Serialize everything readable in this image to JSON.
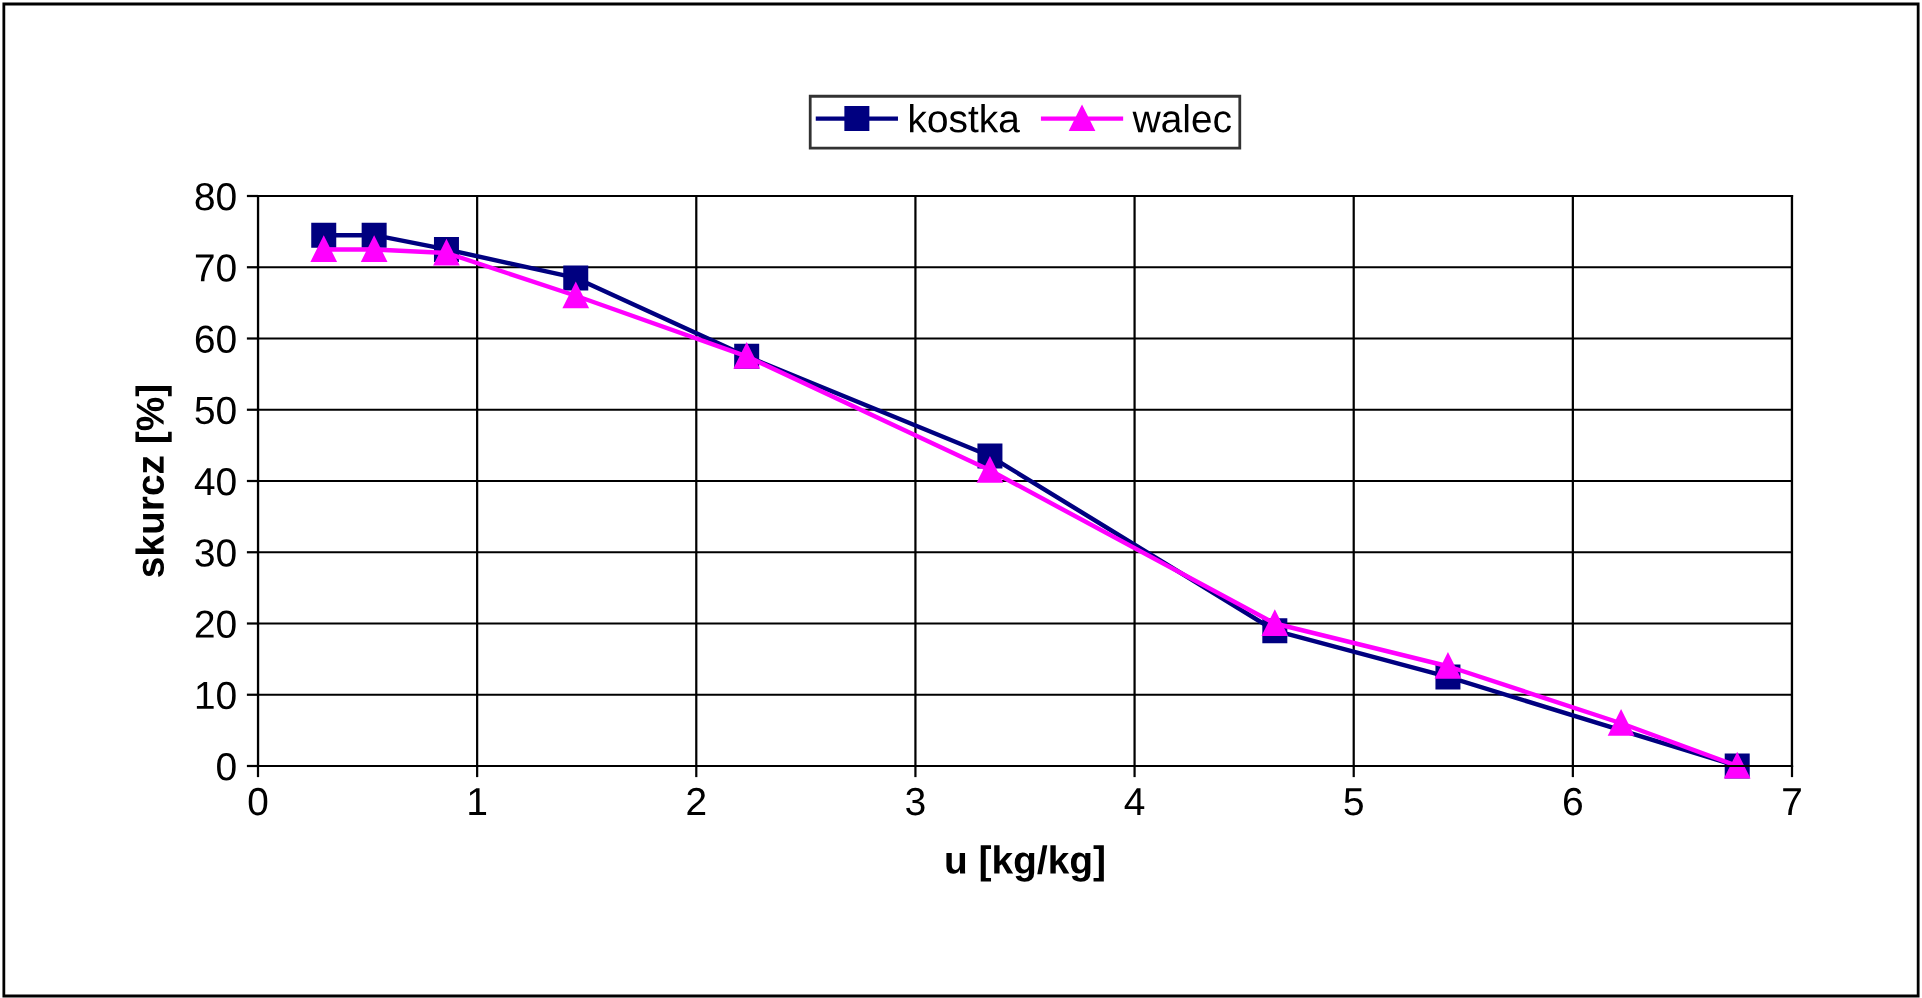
{
  "chart_data": {
    "type": "line",
    "xlabel": "u [kg/kg]",
    "ylabel": "skurcz [%]",
    "xlim": [
      0,
      7
    ],
    "xticks": [
      0,
      1,
      2,
      3,
      4,
      5,
      6,
      7
    ],
    "ylim": [
      0,
      80
    ],
    "yticks": [
      0,
      10,
      20,
      30,
      40,
      50,
      60,
      70,
      80
    ],
    "grid": true,
    "legend": "top",
    "series": [
      {
        "name": "kostka",
        "color": "#000080",
        "marker": "square",
        "x": [
          0.3,
          0.53,
          0.86,
          1.45,
          2.23,
          3.34,
          4.64,
          5.43,
          6.75
        ],
        "values": [
          74.5,
          74.5,
          72.5,
          68.5,
          57.5,
          43.5,
          19,
          12.5,
          0
        ]
      },
      {
        "name": "walec",
        "color": "#ff00ff",
        "marker": "triangle",
        "x": [
          0.3,
          0.53,
          0.86,
          1.45,
          2.23,
          3.34,
          4.64,
          5.43,
          6.22,
          6.75
        ],
        "values": [
          72.5,
          72.5,
          72,
          66,
          57.5,
          41.5,
          20,
          14,
          6,
          0
        ]
      }
    ]
  }
}
